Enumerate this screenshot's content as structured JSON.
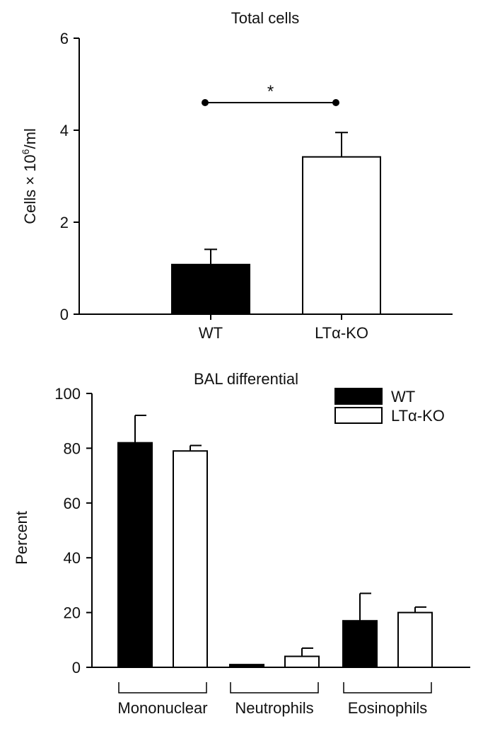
{
  "chart_data": [
    {
      "type": "bar",
      "title": "Total cells",
      "ylabel_parts": {
        "pre": "Cells × 10",
        "sup": "6",
        "post": "/ml"
      },
      "categories": [
        "WT",
        "LTα-KO"
      ],
      "values": [
        1.08,
        3.42
      ],
      "errors": [
        0.33,
        0.53
      ],
      "fills": [
        "#000000",
        "#ffffff"
      ],
      "ylim": [
        0,
        6
      ],
      "yticks": [
        "0",
        "2",
        "4",
        "6"
      ],
      "significance": {
        "label": "*",
        "value": 4.6
      }
    },
    {
      "type": "bar",
      "title": "BAL differential",
      "ylabel": "Percent",
      "categories": [
        "Mononuclear",
        "Neutrophils",
        "Eosinophils"
      ],
      "series": [
        {
          "name": "WT",
          "values": [
            82,
            1,
            17
          ],
          "errors": [
            10,
            0,
            10
          ],
          "color": "#000000"
        },
        {
          "name": "LTα-KO",
          "values": [
            79,
            4,
            20
          ],
          "errors": [
            2,
            3,
            2
          ],
          "color": "#ffffff"
        }
      ],
      "ylim": [
        0,
        100
      ],
      "yticks": [
        "0",
        "20",
        "40",
        "60",
        "80",
        "100"
      ],
      "legend_position": "top-right"
    }
  ]
}
